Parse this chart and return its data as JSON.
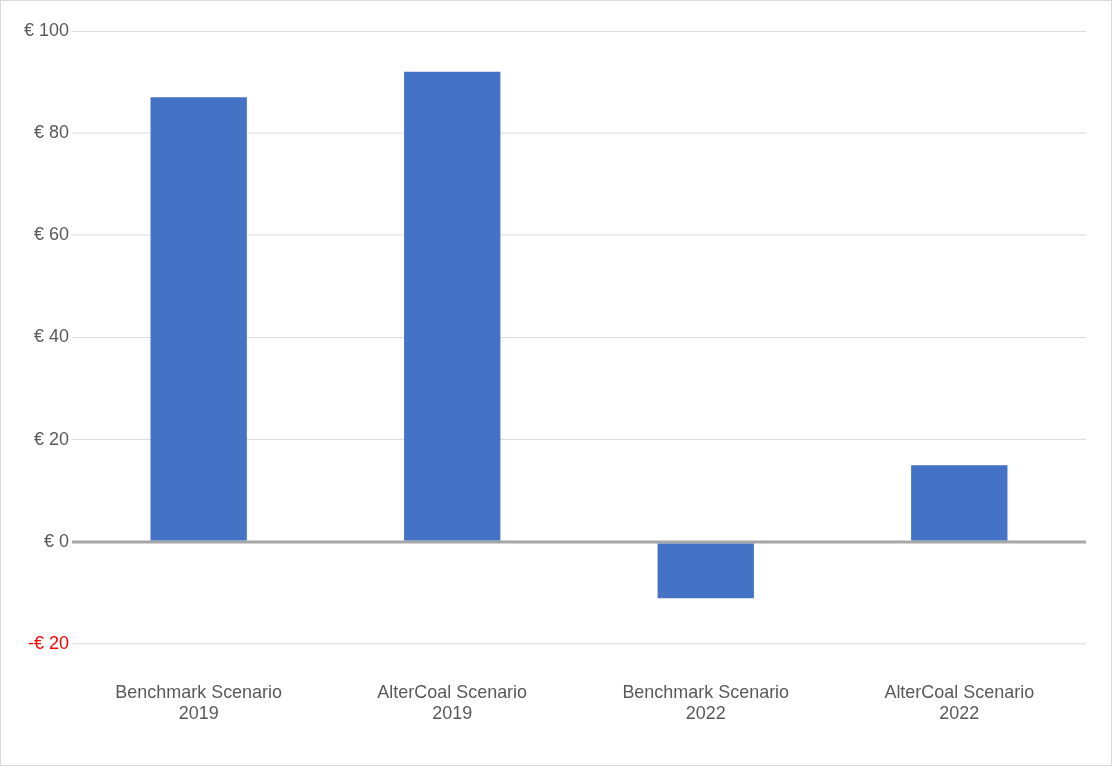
{
  "chart_data": {
    "type": "bar",
    "categories": [
      "Benchmark Scenario 2019",
      "AlterCoal Scenario 2019",
      "Benchmark Scenario 2022",
      "AlterCoal Scenario 2022"
    ],
    "values": [
      87,
      92,
      -11,
      15
    ],
    "color": "#4472c4",
    "ylim": [
      -20,
      100
    ],
    "yticks": [
      {
        "value": -20,
        "label": "-€ 20"
      },
      {
        "value": 0,
        "label": "€ 0"
      },
      {
        "value": 20,
        "label": "€ 20"
      },
      {
        "value": 40,
        "label": "€ 40"
      },
      {
        "value": 60,
        "label": "€ 60"
      },
      {
        "value": 80,
        "label": "€ 80"
      },
      {
        "value": 100,
        "label": "€ 100"
      }
    ],
    "grid": "y",
    "legend": false
  }
}
